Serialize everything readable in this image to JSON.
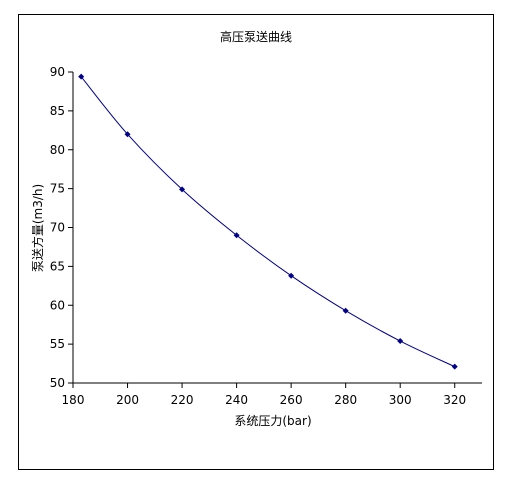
{
  "chart_data": {
    "type": "line",
    "title": "高压泵送曲线",
    "xlabel": "系统压力(bar)",
    "ylabel": "泵送方量(m3/h)",
    "xlim": [
      180,
      330
    ],
    "ylim": [
      50,
      90
    ],
    "xticks": [
      180,
      200,
      220,
      240,
      260,
      280,
      300,
      320
    ],
    "yticks": [
      50,
      55,
      60,
      65,
      70,
      75,
      80,
      85,
      90
    ],
    "grid": false,
    "legend": "none",
    "line_color": "#00008B",
    "marker": "diamond",
    "series": [
      {
        "x": [
          183,
          200,
          220,
          240,
          260,
          280,
          300,
          320
        ],
        "values": [
          89.4,
          82.0,
          74.9,
          69.0,
          63.8,
          59.3,
          55.4,
          52.1
        ]
      }
    ]
  }
}
